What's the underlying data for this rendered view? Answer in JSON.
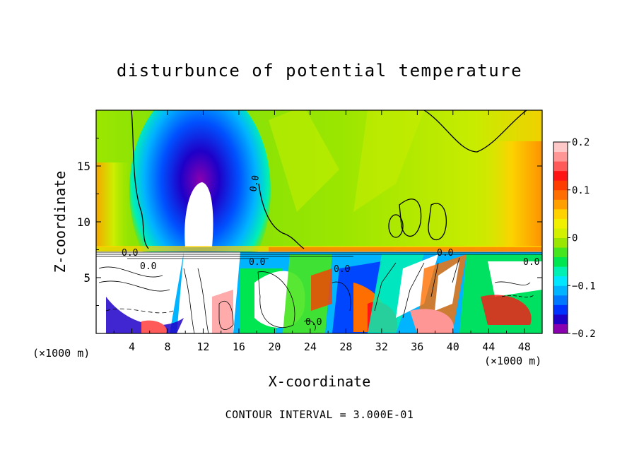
{
  "chart_data": {
    "type": "heatmap",
    "title": "disturbunce of potential temperature",
    "xlabel": "X-coordinate",
    "ylabel": "Z-coordinate",
    "x_unit_label": "(×1000 m)",
    "x_unit_label_right": "(×1000 m)",
    "xlim": [
      0,
      50
    ],
    "ylim": [
      0,
      20
    ],
    "xticks": [
      4,
      8,
      12,
      16,
      20,
      24,
      28,
      32,
      36,
      40,
      44,
      48
    ],
    "yticks": [
      5,
      10,
      15
    ],
    "footer": "CONTOUR INTERVAL = 3.000E-01",
    "contour_interval": 0.3,
    "contour_labels": [
      "0.0",
      "0.0",
      "0.0",
      "0.0",
      "0.0",
      "0.0",
      "0.0",
      "0.0"
    ],
    "colorbar": {
      "min": -0.2,
      "max": 0.2,
      "ticks": [
        0.2,
        0.1,
        0,
        -0.1,
        -0.2
      ],
      "tick_labels": [
        "0.2",
        "0.1",
        "0",
        "−0.1",
        "−0.2"
      ],
      "colors": [
        "#8a00b0",
        "#1e00c8",
        "#0032ff",
        "#0078ff",
        "#00b4ff",
        "#00e6ff",
        "#00f0b4",
        "#00e650",
        "#46e61e",
        "#9be600",
        "#d2f000",
        "#f0f000",
        "#ffd200",
        "#ffa000",
        "#ff6e00",
        "#ff3c00",
        "#ff1414",
        "#ff5a5a",
        "#ff9696",
        "#ffc8c8"
      ]
    },
    "boundary_height": 7.3
  }
}
